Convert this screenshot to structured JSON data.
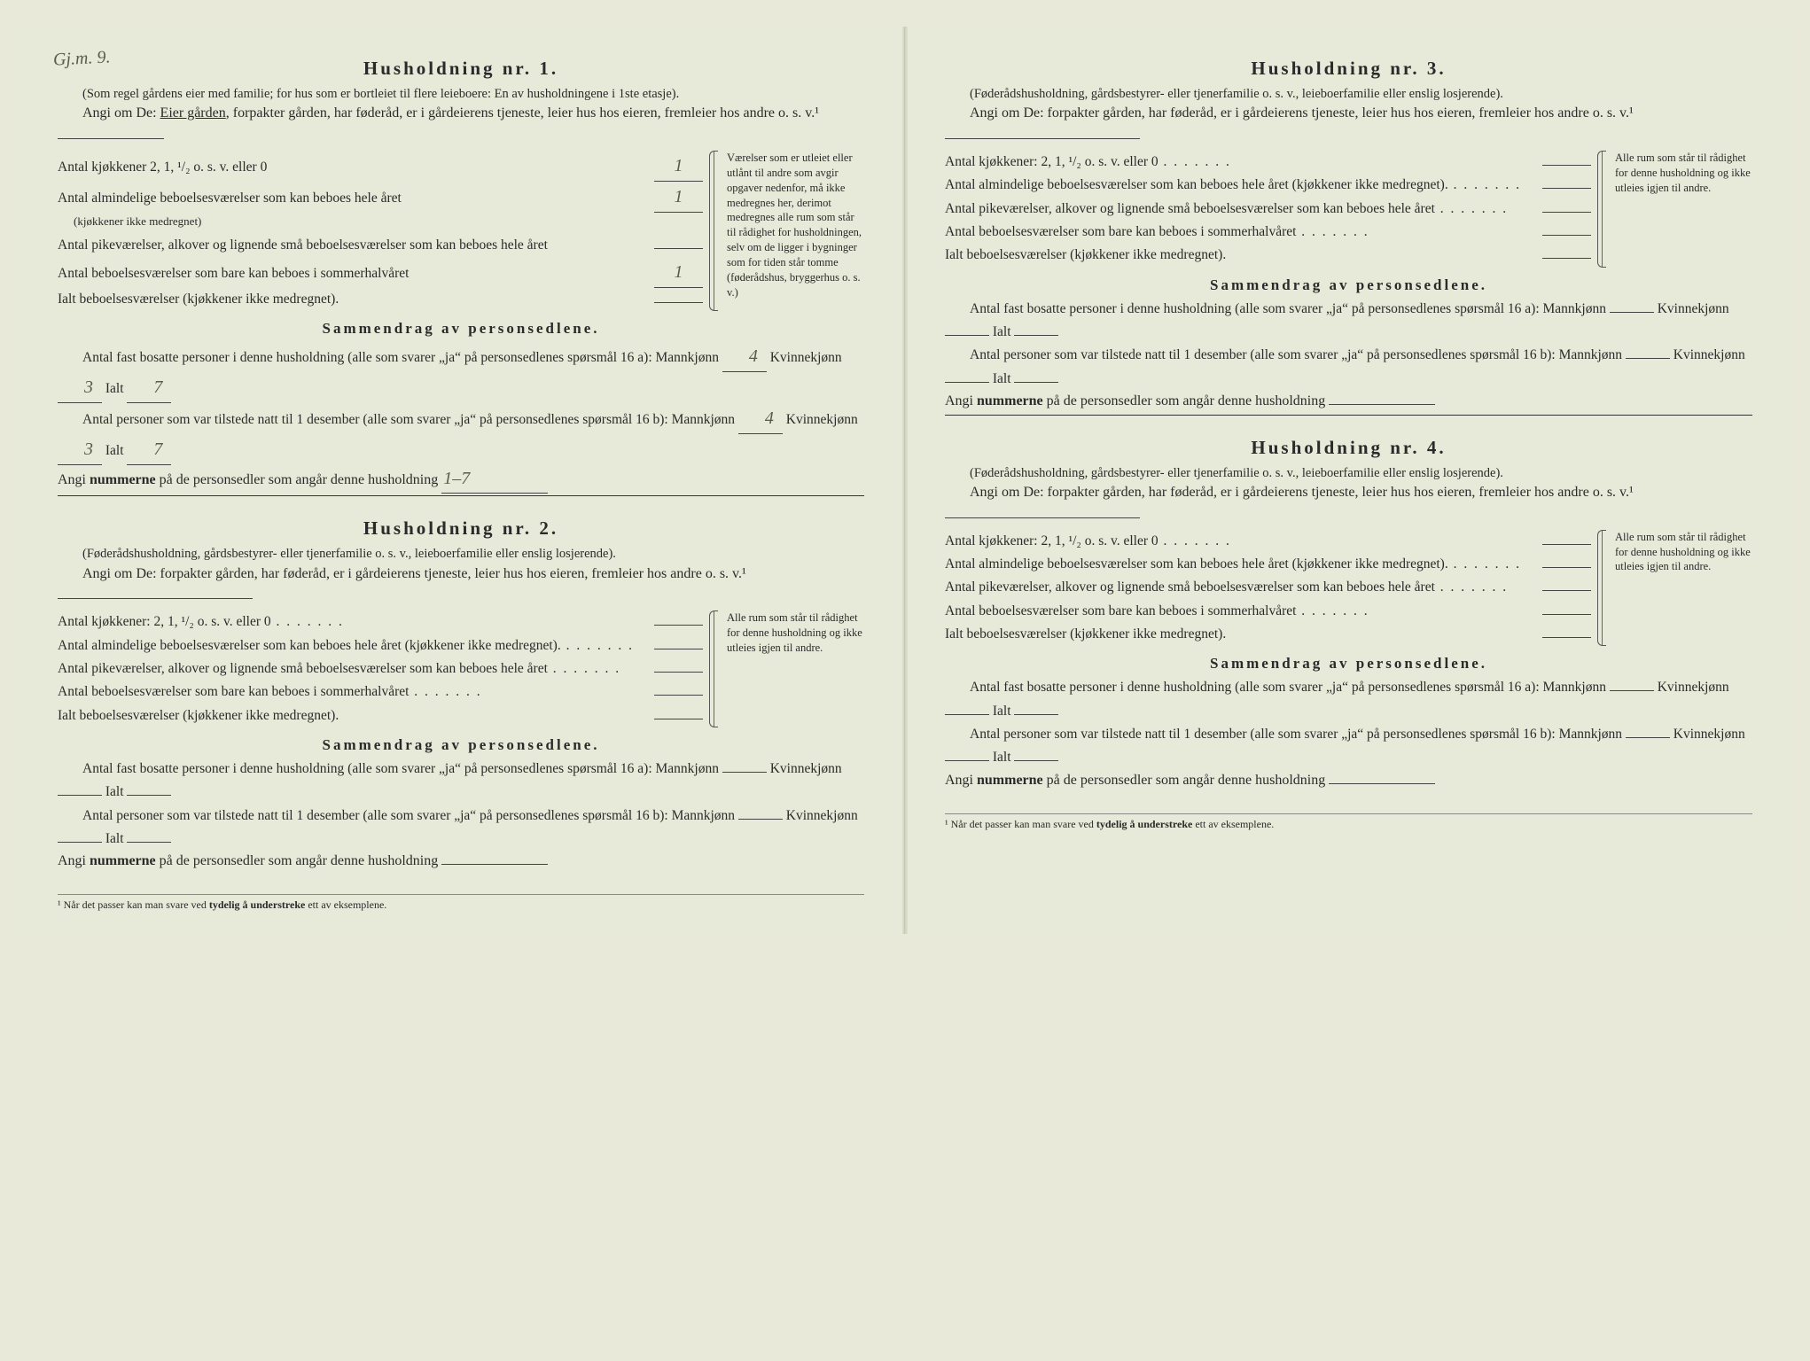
{
  "annotation": "Gj.m. 9.",
  "colors": {
    "paper": "#e8ead9",
    "ink": "#2a2a2a",
    "hand": "#5a5a4a",
    "rule": "#444"
  },
  "fonts": {
    "body_family": "Georgia, Times New Roman, serif",
    "body_size_pt": 12,
    "title_size_pt": 16,
    "subhead_size_pt": 13,
    "side_size_pt": 9.5,
    "footnote_size_pt": 9
  },
  "hh": [
    {
      "title": "Husholdning nr. 1.",
      "paren": "(Som regel gårdens eier med familie; for hus som er bortleiet til flere leieboere: En av husholdningene i 1ste etasje).",
      "angi_prefix": "Angi om De:",
      "angi_body": "Eier gården, forpakter gården, har føderåd, er i gårdeierens tjeneste, leier hus hos eieren, fremleier hos andre o. s. v.¹",
      "angi_underlined": "Eier gården",
      "kj_label": "Antal kjøkkener 2, 1, ¹/₂ o. s. v. eller 0",
      "kj_val": "1",
      "alm_label": "Antal almindelige beboelsesværelser som kan beboes hele året",
      "alm_sub": "(kjøkkener ikke medregnet)",
      "alm_val": "1",
      "pike_label": "Antal pikeværelser, alkover og lignende små beboelsesværelser som kan beboes hele året",
      "pike_val": "",
      "som_label": "Antal beboelsesværelser som bare kan beboes i sommerhalvåret",
      "som_val": "1",
      "ialt_label": "Ialt beboelsesværelser (kjøkkener ikke medregnet).",
      "ialt_val": "",
      "side": "Værelser som er utleiet eller utlånt til andre som avgir opgaver nedenfor, må ikke medregnes her, derimot medregnes alle rum som står til rådighet for husholdningen, selv om de ligger i bygninger som for tiden står tomme (føderådshus, bryggerhus o. s. v.)",
      "samhead": "Sammendrag av personsedlene.",
      "sam1a": "Antal fast bosatte personer i denne husholdning (alle som svarer „ja“ på personsedlenes spørsmål 16 a):",
      "sam1b": "Antal personer som var tilstede natt til 1 desember (alle som svarer „ja“ på personsedlenes spørsmål 16 b):",
      "m_lbl": "Mannkjønn",
      "k_lbl": "Kvinnekjønn",
      "i_lbl": "Ialt",
      "m16a": "4",
      "k16a": "3",
      "i16a": "7",
      "m16b": "4",
      "k16b": "3",
      "i16b": "7",
      "angi_num": "Angi nummerne på de personsedler som angår denne husholdning",
      "num_val": "1–7"
    },
    {
      "title": "Husholdning nr. 2.",
      "paren": "(Føderådshusholdning, gårdsbestyrer- eller tjenerfamilie o. s. v., leieboerfamilie eller enslig losjerende).",
      "angi_prefix": "Angi om De:",
      "angi_body": "forpakter gården, har føderåd, er i gårdeierens tjeneste, leier hus hos eieren, fremleier hos andre o. s. v.¹",
      "kj_label": "Antal kjøkkener: 2, 1, ¹/₂ o. s. v. eller 0",
      "kj_val": "",
      "alm_label": "Antal almindelige beboelsesværelser som kan beboes hele året (kjøkkener ikke medregnet).",
      "alm_val": "",
      "pike_label": "Antal pikeværelser, alkover og lignende små beboelsesværelser som kan beboes hele året",
      "pike_val": "",
      "som_label": "Antal beboelsesværelser som bare kan beboes i sommerhalvåret",
      "som_val": "",
      "ialt_label": "Ialt beboelsesværelser (kjøkkener ikke medregnet).",
      "ialt_val": "",
      "side": "Alle rum som står til rådighet for denne husholdning og ikke utleies igjen til andre.",
      "samhead": "Sammendrag av personsedlene.",
      "sam1a": "Antal fast bosatte personer i denne husholdning (alle som svarer „ja“ på personsedlenes spørsmål 16 a):",
      "sam1b": "Antal personer som var tilstede natt til 1 desember (alle som svarer „ja“ på personsedlenes spørsmål 16 b):",
      "m_lbl": "Mannkjønn",
      "k_lbl": "Kvinnekjønn",
      "i_lbl": "Ialt",
      "m16a": "",
      "k16a": "",
      "i16a": "",
      "m16b": "",
      "k16b": "",
      "i16b": "",
      "angi_num": "Angi nummerne på de personsedler som angår denne husholdning",
      "num_val": ""
    },
    {
      "title": "Husholdning nr. 3.",
      "paren": "(Føderådshusholdning, gårdsbestyrer- eller tjenerfamilie o. s. v., leieboerfamilie eller enslig losjerende).",
      "angi_prefix": "Angi om De:",
      "angi_body": "forpakter gården, har føderåd, er i gårdeierens tjeneste, leier hus hos eieren, fremleier hos andre o. s. v.¹",
      "kj_label": "Antal kjøkkener: 2, 1, ¹/₂ o. s. v. eller 0",
      "kj_val": "",
      "alm_label": "Antal almindelige beboelsesværelser som kan beboes hele året (kjøkkener ikke medregnet).",
      "alm_val": "",
      "pike_label": "Antal pikeværelser, alkover og lignende små beboelsesværelser som kan beboes hele året",
      "pike_val": "",
      "som_label": "Antal beboelsesværelser som bare kan beboes i sommerhalvåret",
      "som_val": "",
      "ialt_label": "Ialt beboelsesværelser (kjøkkener ikke medregnet).",
      "ialt_val": "",
      "side": "Alle rum som står til rådighet for denne husholdning og ikke utleies igjen til andre.",
      "samhead": "Sammendrag av personsedlene.",
      "sam1a": "Antal fast bosatte personer i denne husholdning (alle som svarer „ja“ på personsedlenes spørsmål 16 a):",
      "sam1b": "Antal personer som var tilstede natt til 1 desember (alle som svarer „ja“ på personsedlenes spørsmål 16 b):",
      "m_lbl": "Mannkjønn",
      "k_lbl": "Kvinnekjønn",
      "i_lbl": "Ialt",
      "m16a": "",
      "k16a": "",
      "i16a": "",
      "m16b": "",
      "k16b": "",
      "i16b": "",
      "angi_num": "Angi nummerne på de personsedler som angår denne husholdning",
      "num_val": ""
    },
    {
      "title": "Husholdning nr. 4.",
      "paren": "(Føderådshusholdning, gårdsbestyrer- eller tjenerfamilie o. s. v., leieboerfamilie eller enslig losjerende).",
      "angi_prefix": "Angi om De:",
      "angi_body": "forpakter gården, har føderåd, er i gårdeierens tjeneste, leier hus hos eieren, fremleier hos andre o. s. v.¹",
      "kj_label": "Antal kjøkkener: 2, 1, ¹/₂ o. s. v. eller 0",
      "kj_val": "",
      "alm_label": "Antal almindelige beboelsesværelser som kan beboes hele året (kjøkkener ikke medregnet).",
      "alm_val": "",
      "pike_label": "Antal pikeværelser, alkover og lignende små beboelsesværelser som kan beboes hele året",
      "pike_val": "",
      "som_label": "Antal beboelsesværelser som bare kan beboes i sommerhalvåret",
      "som_val": "",
      "ialt_label": "Ialt beboelsesværelser (kjøkkener ikke medregnet).",
      "ialt_val": "",
      "side": "Alle rum som står til rådighet for denne husholdning og ikke utleies igjen til andre.",
      "samhead": "Sammendrag av personsedlene.",
      "sam1a": "Antal fast bosatte personer i denne husholdning (alle som svarer „ja“ på personsedlenes spørsmål 16 a):",
      "sam1b": "Antal personer som var tilstede natt til 1 desember (alle som svarer „ja“ på personsedlenes spørsmål 16 b):",
      "m_lbl": "Mannkjønn",
      "k_lbl": "Kvinnekjønn",
      "i_lbl": "Ialt",
      "m16a": "",
      "k16a": "",
      "i16a": "",
      "m16b": "",
      "k16b": "",
      "i16b": "",
      "angi_num": "Angi nummerne på de personsedler som angår denne husholdning",
      "num_val": ""
    }
  ],
  "footnote": "¹ Når det passer kan man svare ved tydelig å understreke ett av eksemplene.",
  "footnote_bold": "tydelig å understreke"
}
